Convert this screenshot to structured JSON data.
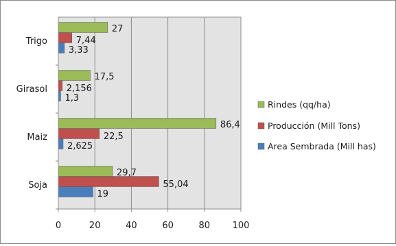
{
  "chart_data": {
    "type": "bar",
    "orientation": "horizontal",
    "categories": [
      "Soja",
      "Maiz",
      "Girasol",
      "Trigo"
    ],
    "series": [
      {
        "name": "Area Sembrada (Mill has)",
        "color": "#4a7ebb",
        "values": [
          19,
          2.625,
          1.3,
          3.33
        ],
        "labels": [
          "19",
          "2,625",
          "1,3",
          "3,33"
        ]
      },
      {
        "name": "Producción (Mill Tons)",
        "color": "#c0504d",
        "values": [
          55.04,
          22.5,
          2.156,
          7.44
        ],
        "labels": [
          "55,04",
          "22,5",
          "2,156",
          "7,44"
        ]
      },
      {
        "name": "Rindes (qq/ha)",
        "color": "#9bbb59",
        "values": [
          29.7,
          86.4,
          17.5,
          27
        ],
        "labels": [
          "29,7",
          "86,4",
          "17,5",
          "27"
        ]
      }
    ],
    "xlim": [
      0,
      100
    ],
    "xticks": [
      "0",
      "20",
      "40",
      "60",
      "80",
      "100"
    ],
    "grid": "vertical",
    "legend": "right",
    "legend_order": [
      "Rindes (qq/ha)",
      "Producción (Mill Tons)",
      "Area Sembrada (Mill has)"
    ],
    "plot_background": "#e3e3e3"
  }
}
